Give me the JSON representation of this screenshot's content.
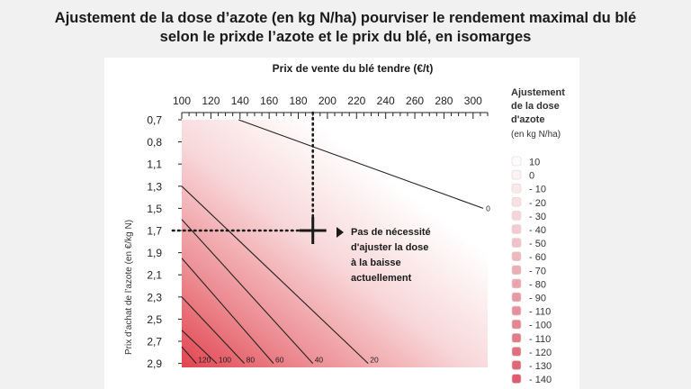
{
  "title_lines": [
    "Ajustement de la dose d’azote (en kg N/ha) pourviser le rendement maximal du blé",
    "selon le prixde l’azote et le prix du blé, en isomarges"
  ],
  "chart_data": {
    "type": "line",
    "xlabel": "Prix de vente du blé tendre (€/t)",
    "ylabel": "Prix d’achat de l’azote (en €/kg N)",
    "x_ticks": [
      "100",
      "120",
      "140",
      "160",
      "180",
      "200",
      "220",
      "240",
      "260",
      "280",
      "300"
    ],
    "x_tick_values": [
      100,
      120,
      140,
      160,
      180,
      200,
      220,
      240,
      260,
      280,
      300
    ],
    "y_ticks": [
      "0,7",
      "0,8",
      "1,1",
      "1,3",
      "1,5",
      "1,7",
      "1,9",
      "2,1",
      "2,3",
      "2,5",
      "2,7",
      "2,9"
    ],
    "xlim": [
      100,
      310
    ],
    "legend": {
      "title_lines": [
        "Ajustement",
        "de la dose",
        "d'azote"
      ],
      "subtitle": "(en kg N/ha)",
      "entries": [
        "10",
        "0",
        "- 10",
        "- 20",
        "- 30",
        "- 40",
        "- 50",
        "- 60",
        "- 70",
        "- 80",
        "- 90",
        "- 110",
        "- 100",
        "- 110",
        "- 120",
        "- 130",
        "- 140"
      ],
      "colors": [
        "#fdfcfc",
        "#fbf3f4",
        "#f9e9eb",
        "#f7dfe2",
        "#f5d5d9",
        "#f3cbd0",
        "#f1c1c7",
        "#efb7be",
        "#edadb5",
        "#eba3ac",
        "#e999a3",
        "#e78f9a",
        "#e58591",
        "#e37b88",
        "#e1717f",
        "#df6776",
        "#dd5d6d"
      ]
    },
    "series": [
      {
        "label": "0",
        "points": [
          [
            139,
            0.7
          ],
          [
            307,
            1.5
          ]
        ]
      },
      {
        "label": "20",
        "points": [
          [
            100,
            1.3
          ],
          [
            228,
            2.9
          ]
        ]
      },
      {
        "label": "40",
        "points": [
          [
            100,
            1.6
          ],
          [
            190,
            2.9
          ]
        ]
      },
      {
        "label": "60",
        "points": [
          [
            100,
            1.95
          ],
          [
            163,
            2.9
          ]
        ]
      },
      {
        "label": "80",
        "points": [
          [
            100,
            2.3
          ],
          [
            143,
            2.9
          ]
        ]
      },
      {
        "label": "100",
        "points": [
          [
            100,
            2.6
          ],
          [
            124,
            2.9
          ]
        ]
      },
      {
        "label": "120",
        "points": [
          [
            100,
            2.75
          ],
          [
            110,
            2.9
          ]
        ]
      }
    ],
    "reference": {
      "x": 190,
      "y": 1.7
    },
    "annotation_lines": [
      "Pas de nécessité",
      "d'ajuster la dose",
      "à la baisse",
      "actuellement"
    ]
  }
}
